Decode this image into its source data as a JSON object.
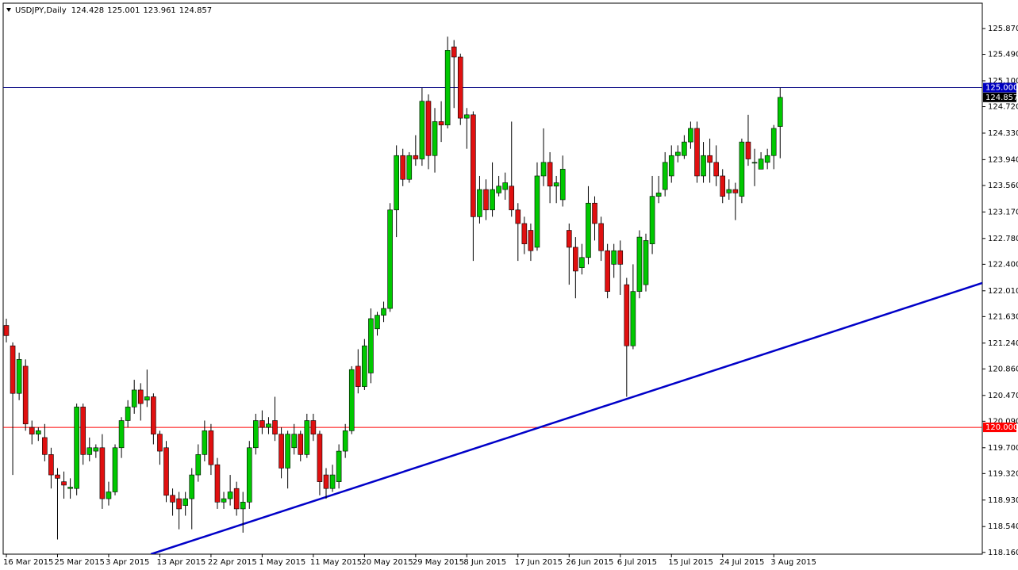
{
  "chart_data": {
    "type": "candlestick",
    "title": "USDJPY,Daily",
    "categories": [
      "16 Mar 2015",
      null,
      null,
      null,
      null,
      null,
      null,
      null,
      "25 Mar 2015",
      null,
      null,
      null,
      null,
      null,
      null,
      null,
      "3 Apr 2015",
      null,
      null,
      null,
      null,
      null,
      null,
      null,
      "13 Apr 2015",
      null,
      null,
      null,
      null,
      null,
      null,
      null,
      "22 Apr 2015",
      null,
      null,
      null,
      null,
      null,
      null,
      null,
      "1 May 2015",
      null,
      null,
      null,
      null,
      null,
      null,
      null,
      "11 May 2015",
      null,
      null,
      null,
      null,
      null,
      null,
      null,
      "20 May 2015",
      null,
      null,
      null,
      null,
      null,
      null,
      null,
      "29 May 2015",
      null,
      null,
      null,
      null,
      null,
      null,
      null,
      "8 Jun 2015",
      null,
      null,
      null,
      null,
      null,
      null,
      null,
      "17 Jun 2015",
      null,
      null,
      null,
      null,
      null,
      null,
      null,
      "26 Jun 2015",
      null,
      null,
      null,
      null,
      null,
      null,
      null,
      "6 Jul 2015",
      null,
      null,
      null,
      null,
      null,
      null,
      null,
      "15 Jul 2015",
      null,
      null,
      null,
      null,
      null,
      null,
      null,
      "24 Jul 2015",
      null,
      null,
      null,
      null,
      null,
      null,
      null,
      "3 Aug 2015",
      null
    ],
    "open": [
      121.5,
      121.2,
      120.5,
      120.9,
      120.0,
      119.9,
      119.85,
      119.6,
      119.3,
      119.2,
      119.1,
      119.1,
      120.3,
      119.6,
      119.65,
      119.7,
      118.95,
      119.05,
      119.7,
      120.1,
      120.3,
      120.55,
      120.4,
      120.45,
      119.9,
      119.7,
      119.0,
      118.95,
      118.85,
      118.95,
      119.3,
      119.6,
      119.95,
      119.45,
      118.9,
      118.95,
      119.1,
      118.8,
      118.9,
      119.7,
      120.1,
      120.0,
      120.1,
      119.9,
      119.4,
      119.7,
      119.9,
      119.6,
      120.1,
      119.9,
      119.3,
      119.1,
      119.2,
      119.65,
      119.95,
      120.9,
      120.6,
      120.8,
      121.45,
      121.65,
      121.75,
      123.2,
      124.0,
      123.65,
      124.0,
      123.95,
      124.8,
      124.0,
      124.5,
      124.45,
      125.6,
      125.45,
      124.55,
      124.6,
      123.1,
      123.5,
      123.2,
      123.45,
      123.5,
      123.55,
      123.2,
      123.0,
      122.9,
      122.65,
      123.7,
      123.9,
      123.55,
      123.35,
      122.9,
      122.65,
      122.35,
      122.5,
      123.3,
      123.0,
      122.6,
      122.4,
      122.6,
      122.1,
      121.2,
      122.0,
      122.1,
      122.7,
      123.4,
      123.5,
      123.7,
      124.0,
      124.0,
      124.2,
      124.4,
      123.7,
      124.0,
      123.9,
      123.7,
      123.45,
      123.5,
      123.4,
      124.2,
      123.9,
      123.8,
      123.9,
      124.0,
      124.428
    ],
    "high": [
      121.6,
      121.25,
      121.1,
      121.0,
      120.1,
      120.0,
      120.05,
      119.7,
      119.4,
      119.35,
      119.25,
      120.35,
      120.35,
      119.85,
      119.75,
      119.9,
      119.2,
      119.75,
      120.15,
      120.4,
      120.7,
      120.65,
      120.85,
      120.5,
      119.95,
      119.8,
      119.1,
      119.05,
      119.05,
      119.4,
      119.75,
      120.1,
      120.05,
      119.55,
      119.05,
      119.3,
      119.2,
      119.05,
      119.8,
      120.2,
      120.25,
      120.15,
      120.45,
      120.0,
      119.95,
      120.05,
      119.95,
      120.2,
      120.2,
      119.95,
      119.4,
      119.45,
      119.75,
      120.05,
      120.9,
      121.15,
      121.3,
      121.75,
      121.7,
      121.85,
      123.3,
      124.15,
      124.1,
      124.05,
      124.3,
      125.0,
      124.9,
      124.7,
      124.8,
      125.75,
      125.7,
      125.5,
      124.7,
      124.65,
      123.7,
      123.65,
      123.9,
      123.7,
      123.75,
      124.5,
      123.3,
      123.1,
      123.0,
      123.9,
      124.4,
      124.05,
      123.7,
      124.0,
      123.0,
      122.8,
      122.7,
      123.55,
      123.4,
      123.1,
      122.7,
      122.7,
      122.75,
      122.2,
      122.4,
      122.9,
      122.85,
      123.7,
      123.7,
      124.05,
      124.15,
      124.15,
      124.3,
      124.5,
      124.5,
      124.2,
      124.25,
      124.15,
      123.8,
      123.65,
      123.6,
      124.25,
      124.6,
      124.1,
      124.05,
      124.1,
      124.45,
      125.001
    ],
    "low": [
      121.25,
      119.3,
      120.4,
      119.95,
      119.75,
      119.8,
      119.5,
      119.1,
      118.35,
      118.95,
      118.95,
      119.0,
      119.45,
      119.5,
      119.55,
      118.8,
      118.85,
      119.0,
      119.55,
      120.0,
      120.2,
      120.1,
      120.3,
      119.75,
      119.45,
      118.9,
      118.7,
      118.5,
      118.7,
      118.5,
      119.2,
      119.5,
      119.3,
      118.8,
      118.8,
      118.85,
      118.7,
      118.45,
      118.8,
      119.6,
      119.9,
      119.9,
      119.8,
      119.25,
      119.1,
      119.6,
      119.5,
      119.55,
      119.8,
      119.0,
      118.95,
      119.05,
      119.1,
      119.55,
      119.9,
      120.5,
      120.55,
      120.65,
      121.35,
      121.55,
      121.7,
      122.8,
      123.55,
      123.6,
      123.85,
      123.85,
      123.8,
      123.75,
      124.2,
      124.4,
      124.7,
      124.45,
      124.1,
      122.45,
      123.0,
      123.05,
      123.1,
      123.4,
      123.35,
      123.1,
      122.45,
      122.55,
      122.45,
      122.6,
      123.55,
      123.3,
      123.3,
      123.25,
      122.1,
      121.9,
      122.25,
      122.4,
      122.75,
      122.45,
      121.9,
      122.2,
      121.95,
      120.45,
      121.15,
      121.9,
      122.0,
      122.55,
      123.3,
      123.4,
      123.6,
      123.9,
      123.95,
      124.1,
      123.6,
      123.6,
      123.6,
      123.55,
      123.3,
      123.35,
      123.05,
      123.3,
      123.85,
      123.55,
      123.8,
      123.8,
      123.8,
      123.961
    ],
    "close": [
      121.35,
      120.5,
      121.0,
      120.05,
      119.9,
      119.95,
      119.6,
      119.3,
      119.25,
      119.15,
      119.12,
      120.3,
      119.6,
      119.7,
      119.7,
      118.95,
      119.05,
      119.7,
      120.1,
      120.3,
      120.55,
      120.35,
      120.45,
      119.9,
      119.65,
      119.0,
      118.9,
      118.8,
      118.95,
      119.3,
      119.6,
      119.95,
      119.45,
      118.9,
      118.95,
      119.05,
      118.8,
      118.9,
      119.7,
      120.1,
      120.0,
      120.05,
      119.9,
      119.4,
      119.9,
      119.9,
      119.6,
      120.1,
      119.9,
      119.2,
      119.1,
      119.3,
      119.65,
      119.95,
      120.85,
      120.6,
      121.2,
      121.6,
      121.65,
      121.75,
      123.2,
      124.0,
      123.65,
      124.0,
      123.95,
      124.8,
      124.0,
      124.5,
      124.45,
      125.55,
      125.45,
      124.55,
      124.6,
      123.1,
      123.5,
      123.2,
      123.5,
      123.55,
      123.6,
      123.2,
      123.0,
      122.7,
      122.6,
      123.7,
      123.9,
      123.55,
      123.6,
      123.8,
      122.65,
      122.3,
      122.5,
      123.3,
      123.0,
      122.6,
      122.0,
      122.6,
      122.4,
      121.2,
      122.0,
      122.8,
      122.75,
      123.4,
      123.45,
      123.9,
      124.0,
      124.05,
      124.2,
      124.4,
      123.7,
      124.0,
      123.9,
      123.7,
      123.4,
      123.5,
      123.45,
      124.2,
      123.95,
      123.9,
      123.95,
      124.0,
      124.4,
      124.857
    ],
    "up_color": "#00c800",
    "down_color": "#e01010",
    "ylim": [
      118.134,
      126.243
    ],
    "yticks": [
      {
        "value": 125.87,
        "label": "125.870"
      },
      {
        "value": 125.49,
        "label": "125.490"
      },
      {
        "value": 125.1,
        "label": "125.100"
      },
      {
        "value": 124.72,
        "label": "124.720"
      },
      {
        "value": 124.33,
        "label": "124.330"
      },
      {
        "value": 123.94,
        "label": "123.940"
      },
      {
        "value": 123.56,
        "label": "123.560"
      },
      {
        "value": 123.17,
        "label": "123.170"
      },
      {
        "value": 122.78,
        "label": "122.780"
      },
      {
        "value": 122.4,
        "label": "122.400"
      },
      {
        "value": 122.01,
        "label": "122.010"
      },
      {
        "value": 121.63,
        "label": "121.630"
      },
      {
        "value": 121.24,
        "label": "121.240"
      },
      {
        "value": 120.86,
        "label": "120.860"
      },
      {
        "value": 120.47,
        "label": "120.470"
      },
      {
        "value": 120.09,
        "label": "120.090"
      },
      {
        "value": 119.7,
        "label": "119.700"
      },
      {
        "value": 119.32,
        "label": "119.320"
      },
      {
        "value": 118.93,
        "label": "118.930"
      },
      {
        "value": 118.54,
        "label": "118.540"
      },
      {
        "value": 118.16,
        "label": "118.160"
      }
    ],
    "level_lines": [
      {
        "value": 125,
        "label": "125.000",
        "color": "#000080",
        "label_color": "#0000c0"
      },
      {
        "value": 120,
        "label": "120.000",
        "color": "#ff0000",
        "label_color": "#ff0000"
      }
    ],
    "trendline": {
      "x": [
        22.6,
        152.6
      ],
      "y": [
        118.134,
        122.125
      ],
      "color": "#0000c8"
    }
  }
}
